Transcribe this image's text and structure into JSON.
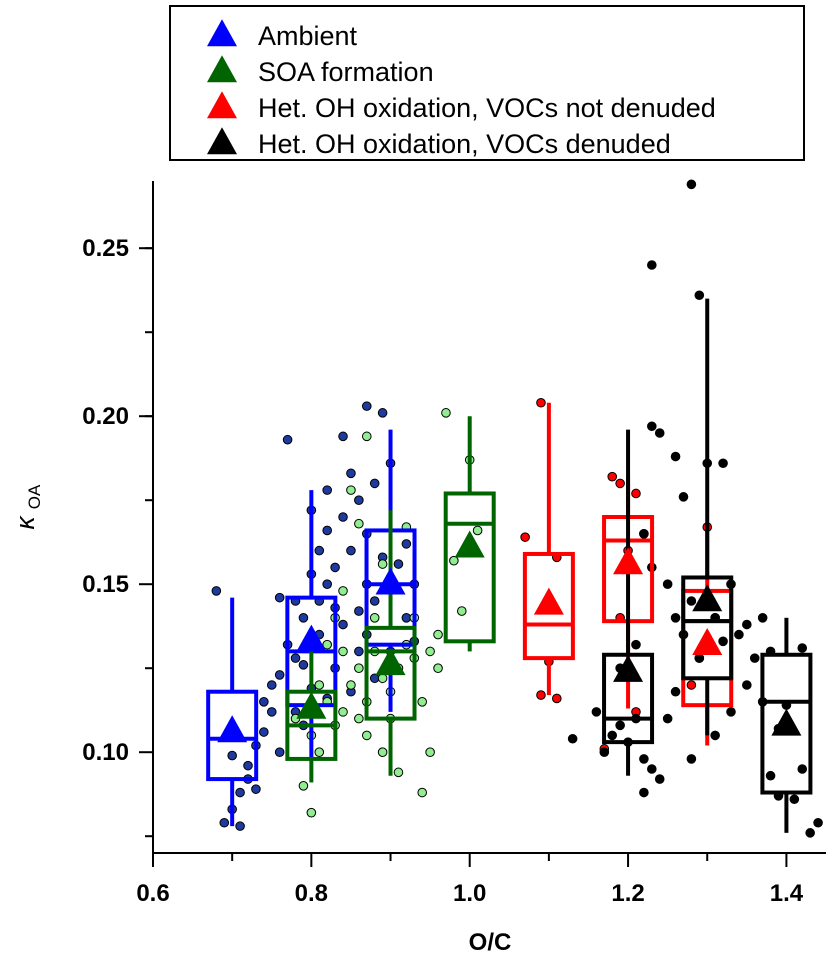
{
  "chart_data": {
    "type": "box",
    "xlabel": "O/C",
    "ylabel": {
      "main": "κ",
      "sub": "OA"
    },
    "xlim": [
      0.6,
      1.45
    ],
    "ylim": [
      0.07,
      0.27
    ],
    "xticks": [
      0.6,
      0.8,
      1.0,
      1.2,
      1.4
    ],
    "xtick_labels": [
      "0.6",
      "0.8",
      "1.0",
      "1.2",
      "1.4"
    ],
    "yticks": [
      0.1,
      0.15,
      0.2,
      0.25
    ],
    "ytick_labels": [
      "0.10",
      "0.15",
      "0.20",
      "0.25"
    ],
    "legend_position": "top",
    "series": [
      {
        "name": "Ambient",
        "color": "#0000ff",
        "point_color": "#1f3a9e",
        "boxes": [
          {
            "x": 0.7,
            "whisker_low": 0.078,
            "q1": 0.092,
            "median": 0.104,
            "q3": 0.118,
            "whisker_high": 0.146,
            "mean": 0.106
          },
          {
            "x": 0.8,
            "whisker_low": 0.098,
            "q1": 0.114,
            "median": 0.13,
            "q3": 0.146,
            "whisker_high": 0.178,
            "mean": 0.133
          },
          {
            "x": 0.9,
            "whisker_low": 0.112,
            "q1": 0.132,
            "median": 0.15,
            "q3": 0.166,
            "whisker_high": 0.196,
            "mean": 0.15
          }
        ],
        "points": [
          [
            0.68,
            0.148
          ],
          [
            0.69,
            0.079
          ],
          [
            0.7,
            0.083
          ],
          [
            0.71,
            0.088
          ],
          [
            0.72,
            0.096
          ],
          [
            0.73,
            0.102
          ],
          [
            0.74,
            0.115
          ],
          [
            0.75,
            0.112
          ],
          [
            0.76,
            0.123
          ],
          [
            0.77,
            0.132
          ],
          [
            0.78,
            0.128
          ],
          [
            0.77,
            0.193
          ],
          [
            0.79,
            0.14
          ],
          [
            0.8,
            0.153
          ],
          [
            0.81,
            0.16
          ],
          [
            0.82,
            0.15
          ],
          [
            0.83,
            0.155
          ],
          [
            0.84,
            0.17
          ],
          [
            0.85,
            0.16
          ],
          [
            0.86,
            0.175
          ],
          [
            0.87,
            0.165
          ],
          [
            0.88,
            0.18
          ],
          [
            0.84,
            0.194
          ],
          [
            0.87,
            0.203
          ],
          [
            0.89,
            0.201
          ],
          [
            0.9,
            0.186
          ],
          [
            0.82,
            0.116
          ],
          [
            0.85,
            0.118
          ],
          [
            0.88,
            0.122
          ],
          [
            0.86,
            0.13
          ],
          [
            0.83,
            0.125
          ],
          [
            0.8,
            0.119
          ],
          [
            0.81,
            0.135
          ],
          [
            0.79,
            0.108
          ],
          [
            0.76,
            0.1
          ],
          [
            0.74,
            0.106
          ],
          [
            0.72,
            0.092
          ],
          [
            0.7,
            0.099
          ],
          [
            0.71,
            0.078
          ],
          [
            0.73,
            0.089
          ],
          [
            0.75,
            0.12
          ],
          [
            0.78,
            0.145
          ],
          [
            0.82,
            0.166
          ],
          [
            0.88,
            0.145
          ],
          [
            0.89,
            0.158
          ],
          [
            0.86,
            0.142
          ],
          [
            0.84,
            0.138
          ],
          [
            0.83,
            0.143
          ],
          [
            0.87,
            0.15
          ],
          [
            0.91,
            0.156
          ],
          [
            0.92,
            0.162
          ],
          [
            0.93,
            0.15
          ],
          [
            0.82,
            0.178
          ],
          [
            0.8,
            0.172
          ],
          [
            0.76,
            0.146
          ],
          [
            0.78,
            0.112
          ],
          [
            0.79,
            0.126
          ],
          [
            0.81,
            0.145
          ],
          [
            0.85,
            0.183
          ],
          [
            0.87,
            0.135
          ],
          [
            0.9,
            0.13
          ],
          [
            0.92,
            0.14
          ],
          [
            0.93,
            0.133
          ]
        ]
      },
      {
        "name": "SOA formation",
        "color": "#006400",
        "point_color": "#90ee90",
        "boxes": [
          {
            "x": 0.8,
            "whisker_low": 0.091,
            "q1": 0.098,
            "median": 0.108,
            "q3": 0.118,
            "whisker_high": 0.136,
            "mean": 0.113
          },
          {
            "x": 0.9,
            "whisker_low": 0.093,
            "q1": 0.11,
            "median": 0.13,
            "q3": 0.137,
            "whisker_high": 0.172,
            "mean": 0.126
          },
          {
            "x": 1.0,
            "whisker_low": 0.13,
            "q1": 0.133,
            "median": 0.168,
            "q3": 0.177,
            "whisker_high": 0.2,
            "mean": 0.161
          }
        ],
        "points": [
          [
            0.78,
            0.11
          ],
          [
            0.79,
            0.09
          ],
          [
            0.8,
            0.105
          ],
          [
            0.81,
            0.1
          ],
          [
            0.82,
            0.115
          ],
          [
            0.83,
            0.108
          ],
          [
            0.84,
            0.112
          ],
          [
            0.85,
            0.12
          ],
          [
            0.86,
            0.125
          ],
          [
            0.87,
            0.115
          ],
          [
            0.88,
            0.13
          ],
          [
            0.89,
            0.122
          ],
          [
            0.9,
            0.118
          ],
          [
            0.91,
            0.125
          ],
          [
            0.92,
            0.132
          ],
          [
            0.93,
            0.128
          ],
          [
            0.94,
            0.115
          ],
          [
            0.95,
            0.13
          ],
          [
            0.96,
            0.125
          ],
          [
            0.94,
            0.088
          ],
          [
            0.91,
            0.094
          ],
          [
            0.85,
            0.178
          ],
          [
            0.86,
            0.168
          ],
          [
            0.87,
            0.194
          ],
          [
            0.84,
            0.148
          ],
          [
            0.83,
            0.14
          ],
          [
            0.82,
            0.132
          ],
          [
            0.92,
            0.167
          ],
          [
            0.88,
            0.14
          ],
          [
            0.89,
            0.156
          ],
          [
            0.93,
            0.14
          ],
          [
            0.96,
            0.135
          ],
          [
            0.97,
            0.201
          ],
          [
            0.98,
            0.157
          ],
          [
            0.95,
            0.1
          ],
          [
            0.86,
            0.11
          ],
          [
            0.8,
            0.082
          ],
          [
            0.87,
            0.105
          ],
          [
            0.9,
            0.11
          ],
          [
            0.89,
            0.1
          ],
          [
            1.0,
            0.187
          ],
          [
            1.01,
            0.166
          ],
          [
            0.99,
            0.142
          ],
          [
            0.81,
            0.12
          ],
          [
            0.84,
            0.13
          ]
        ]
      },
      {
        "name": "Het. OH oxidation, VOCs not denuded",
        "color": "#ff0000",
        "point_color": "#ff0000",
        "boxes": [
          {
            "x": 1.1,
            "whisker_low": 0.117,
            "q1": 0.128,
            "median": 0.138,
            "q3": 0.159,
            "whisker_high": 0.204,
            "mean": 0.144
          },
          {
            "x": 1.2,
            "whisker_low": 0.113,
            "q1": 0.139,
            "median": 0.163,
            "q3": 0.17,
            "whisker_high": 0.182,
            "mean": 0.156
          },
          {
            "x": 1.3,
            "whisker_low": 0.102,
            "q1": 0.114,
            "median": 0.139,
            "q3": 0.148,
            "whisker_high": 0.167,
            "mean": 0.132
          }
        ],
        "points": [
          [
            1.09,
            0.204
          ],
          [
            1.07,
            0.164
          ],
          [
            1.11,
            0.158
          ],
          [
            1.1,
            0.127
          ],
          [
            1.09,
            0.117
          ],
          [
            1.11,
            0.116
          ],
          [
            1.18,
            0.182
          ],
          [
            1.19,
            0.18
          ],
          [
            1.21,
            0.177
          ],
          [
            1.22,
            0.165
          ],
          [
            1.2,
            0.16
          ],
          [
            1.19,
            0.14
          ],
          [
            1.21,
            0.112
          ],
          [
            1.17,
            0.101
          ],
          [
            1.3,
            0.167
          ],
          [
            1.31,
            0.14
          ],
          [
            1.29,
            0.128
          ],
          [
            1.28,
            0.12
          ]
        ]
      },
      {
        "name": "Het. OH oxidation, VOCs denuded",
        "color": "#000000",
        "point_color": "#000000",
        "boxes": [
          {
            "x": 1.2,
            "whisker_low": 0.093,
            "q1": 0.103,
            "median": 0.11,
            "q3": 0.129,
            "whisker_high": 0.196,
            "mean": 0.124
          },
          {
            "x": 1.3,
            "whisker_low": 0.105,
            "q1": 0.122,
            "median": 0.139,
            "q3": 0.152,
            "whisker_high": 0.235,
            "mean": 0.145
          },
          {
            "x": 1.4,
            "whisker_low": 0.076,
            "q1": 0.088,
            "median": 0.115,
            "q3": 0.129,
            "whisker_high": 0.14,
            "mean": 0.108
          }
        ],
        "points": [
          [
            1.13,
            0.104
          ],
          [
            1.16,
            0.112
          ],
          [
            1.17,
            0.1
          ],
          [
            1.18,
            0.105
          ],
          [
            1.19,
            0.108
          ],
          [
            1.2,
            0.103
          ],
          [
            1.21,
            0.11
          ],
          [
            1.22,
            0.098
          ],
          [
            1.23,
            0.095
          ],
          [
            1.24,
            0.092
          ],
          [
            1.22,
            0.088
          ],
          [
            1.19,
            0.125
          ],
          [
            1.21,
            0.132
          ],
          [
            1.23,
            0.155
          ],
          [
            1.22,
            0.165
          ],
          [
            1.23,
            0.197
          ],
          [
            1.24,
            0.195
          ],
          [
            1.23,
            0.245
          ],
          [
            1.26,
            0.188
          ],
          [
            1.27,
            0.176
          ],
          [
            1.28,
            0.269
          ],
          [
            1.29,
            0.236
          ],
          [
            1.3,
            0.186
          ],
          [
            1.32,
            0.186
          ],
          [
            1.25,
            0.15
          ],
          [
            1.26,
            0.14
          ],
          [
            1.27,
            0.135
          ],
          [
            1.28,
            0.145
          ],
          [
            1.29,
            0.128
          ],
          [
            1.31,
            0.14
          ],
          [
            1.32,
            0.133
          ],
          [
            1.33,
            0.15
          ],
          [
            1.34,
            0.135
          ],
          [
            1.35,
            0.138
          ],
          [
            1.36,
            0.128
          ],
          [
            1.37,
            0.14
          ],
          [
            1.35,
            0.12
          ],
          [
            1.33,
            0.112
          ],
          [
            1.31,
            0.105
          ],
          [
            1.28,
            0.098
          ],
          [
            1.25,
            0.11
          ],
          [
            1.26,
            0.118
          ],
          [
            1.38,
            0.13
          ],
          [
            1.37,
            0.115
          ],
          [
            1.39,
            0.107
          ],
          [
            1.38,
            0.093
          ],
          [
            1.39,
            0.087
          ],
          [
            1.4,
            0.114
          ],
          [
            1.42,
            0.131
          ],
          [
            1.42,
            0.095
          ],
          [
            1.43,
            0.076
          ],
          [
            1.44,
            0.079
          ],
          [
            1.41,
            0.086
          ]
        ]
      }
    ]
  }
}
